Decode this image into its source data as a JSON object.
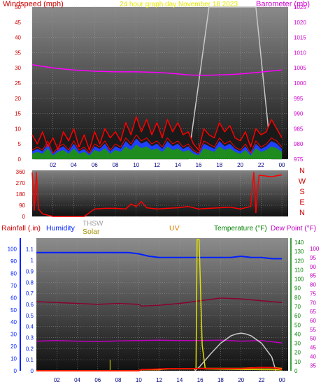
{
  "chart_data": [
    {
      "type": "line",
      "title": "24 hour graph day November 18 2023",
      "ylabel": "Windspeed (mph)",
      "y2label": "Barometer (mb)",
      "ylim": [
        0,
        50
      ],
      "y2lim": [
        975,
        1025
      ],
      "y_ticks": [
        "0",
        "5",
        "10",
        "15",
        "20",
        "25",
        "30",
        "35",
        "40",
        "45",
        "50"
      ],
      "y2_ticks": [
        "975",
        "980",
        "985",
        "990",
        "995",
        "1000",
        "1005",
        "1010",
        "1015",
        "1020",
        "1025"
      ],
      "x_ticks": [
        "02",
        "04",
        "06",
        "08",
        "10",
        "12",
        "14",
        "16",
        "18",
        "20",
        "22",
        "00"
      ],
      "x_hours": [
        2,
        4,
        6,
        8,
        10,
        12,
        14,
        16,
        18,
        20,
        22,
        24
      ],
      "colors": {
        "wind": "#ff0000",
        "barometer": "#ff00ff",
        "overlay": "#c8c8c8",
        "dark": "#1a1a1a",
        "green": "#1e8c1e",
        "blue": "#2040ff"
      },
      "series": [
        {
          "key": "barometer",
          "axis": "y2",
          "x": [
            0,
            1,
            2,
            3,
            4,
            5,
            6,
            7,
            8,
            9,
            10,
            11,
            12,
            13,
            14,
            15,
            16,
            17,
            18,
            19,
            20,
            21,
            22,
            23,
            24
          ],
          "values": [
            1006,
            1005.5,
            1005,
            1004.6,
            1004.3,
            1004.1,
            1003.9,
            1003.8,
            1003.7,
            1003.7,
            1003.7,
            1003.6,
            1003.5,
            1003.3,
            1003,
            1002.7,
            1002.6,
            1002.6,
            1002.7,
            1002.8,
            1003,
            1003.3,
            1003.6,
            1004,
            1004.3
          ]
        },
        {
          "key": "wind",
          "axis": "y",
          "x": [
            0,
            0.5,
            1,
            1.5,
            2,
            2.5,
            3,
            3.5,
            4,
            4.5,
            5,
            5.5,
            6,
            6.5,
            7,
            7.5,
            8,
            8.5,
            9,
            9.5,
            10,
            10.5,
            11,
            11.5,
            12,
            12.5,
            13,
            13.5,
            14,
            14.5,
            15,
            15.5,
            16,
            16.5,
            17,
            17.5,
            18,
            18.5,
            19,
            19.5,
            20,
            20.5,
            21,
            21.5,
            22,
            22.5,
            23,
            23.5,
            24
          ],
          "values": [
            3,
            4,
            3,
            6,
            2,
            4,
            5,
            3,
            6,
            3,
            4,
            2,
            5,
            4,
            6,
            3,
            5,
            4,
            7,
            5,
            8,
            6,
            7,
            5,
            6,
            4,
            7,
            5,
            6,
            4,
            5,
            3,
            2,
            6,
            5,
            4,
            7,
            5,
            6,
            4,
            3,
            5,
            2,
            6,
            4,
            5,
            7,
            6,
            4
          ]
        },
        {
          "key": "gust",
          "axis": "y",
          "x": [
            0,
            0.5,
            1,
            1.5,
            2,
            2.5,
            3,
            3.5,
            4,
            4.5,
            5,
            5.5,
            6,
            6.5,
            7,
            7.5,
            8,
            8.5,
            9,
            9.5,
            10,
            10.5,
            11,
            11.5,
            12,
            12.5,
            13,
            13.5,
            14,
            14.5,
            15,
            15.5,
            16,
            16.5,
            17,
            17.5,
            18,
            18.5,
            19,
            19.5,
            20,
            20.5,
            21,
            21.5,
            22,
            22.5,
            23,
            23.5,
            24
          ],
          "values": [
            8,
            5,
            9,
            4,
            7,
            3,
            9,
            6,
            10,
            4,
            8,
            3,
            9,
            5,
            10,
            7,
            9,
            6,
            12,
            8,
            14,
            9,
            13,
            8,
            12,
            7,
            13,
            9,
            12,
            8,
            9,
            5,
            3,
            10,
            8,
            7,
            12,
            9,
            11,
            7,
            6,
            9,
            4,
            10,
            8,
            9,
            13,
            10,
            7
          ]
        },
        {
          "key": "overlay",
          "axis": "y",
          "x": [
            0,
            0.2,
            15,
            17,
            18.5,
            21.5,
            23,
            24
          ],
          "values": [
            8,
            0,
            0,
            50,
            50,
            50,
            0,
            0
          ]
        }
      ]
    },
    {
      "type": "line",
      "ylabel": "Wind Direction",
      "ylim": [
        0,
        360
      ],
      "y_ticks": [
        "0",
        "90",
        "180",
        "270",
        "360"
      ],
      "dir_labels": [
        "N",
        "W",
        "S",
        "E",
        "N"
      ],
      "series": [
        {
          "key": "direction",
          "x": [
            0,
            0.2,
            0.4,
            0.6,
            1,
            2,
            3,
            4,
            5,
            6,
            7,
            8,
            9,
            9.5,
            10,
            10.5,
            11,
            12,
            13,
            14,
            15,
            16,
            17,
            18,
            19,
            20,
            21,
            21.3,
            21.5,
            21.8,
            22,
            23,
            24
          ],
          "values": [
            355,
            50,
            355,
            60,
            20,
            0,
            0,
            0,
            0,
            60,
            65,
            65,
            60,
            100,
            80,
            120,
            70,
            60,
            65,
            70,
            80,
            60,
            65,
            70,
            75,
            60,
            80,
            355,
            30,
            330,
            330,
            320,
            335
          ]
        }
      ]
    },
    {
      "type": "line",
      "labels": {
        "rain": "Rainfall (.in)",
        "humidity": "Humidity",
        "thsw": "THSW",
        "solar": "Solar",
        "uv": "UV",
        "temperature": "Temperature (°F)",
        "dew_point": "Dew Point (°F)"
      },
      "ylim": [
        0,
        1.2
      ],
      "y_ticks": [
        "0",
        "0.1",
        "0.2",
        "0.3",
        "0.4",
        "0.5",
        "0.6",
        "0.7",
        "0.8",
        "0.9",
        "1",
        "1.1"
      ],
      "y_left2_ticks": [
        "0",
        "10",
        "20",
        "30",
        "40",
        "50",
        "60",
        "70",
        "80",
        "90",
        "100"
      ],
      "y2_ticks": [
        "0",
        "10",
        "20",
        "30",
        "40",
        "50",
        "60",
        "70",
        "80",
        "90",
        "100",
        "110",
        "120",
        "130",
        "140"
      ],
      "y3_ticks": [
        "35",
        "40",
        "45",
        "50",
        "55",
        "60",
        "65",
        "70",
        "75",
        "80",
        "85",
        "90",
        "95",
        "100"
      ],
      "colors": {
        "rain": "#ff0000",
        "humidity": "#0020ff",
        "temperature": "#8b0030",
        "dew_point": "#c000c0",
        "solar": "#c8c8c8",
        "uv": "#e0e000",
        "thsw": "#ff8000"
      },
      "series": [
        {
          "key": "humidity",
          "axis": "y_left2",
          "x": [
            0,
            2,
            4,
            6,
            8,
            9,
            10,
            11,
            12,
            13,
            14,
            15,
            16,
            17,
            18,
            19,
            20,
            21,
            22,
            23,
            24
          ],
          "values": [
            97,
            97,
            97,
            97,
            97,
            97,
            96,
            94,
            93,
            93,
            93,
            93,
            93,
            93,
            93,
            93,
            94,
            93,
            93,
            92,
            92
          ]
        },
        {
          "key": "temperature",
          "axis": "y3",
          "x": [
            0,
            2,
            4,
            6,
            8,
            10,
            10.3,
            12,
            14,
            16,
            18,
            20,
            22,
            24
          ],
          "values": [
            70.5,
            70,
            69.5,
            69,
            69.5,
            69,
            68,
            68.5,
            69.5,
            71,
            72.5,
            72,
            71,
            70
          ]
        },
        {
          "key": "dew_point",
          "axis": "y3",
          "x": [
            0,
            2,
            4,
            6,
            8,
            10,
            12,
            14,
            16,
            18,
            20,
            22,
            24
          ],
          "values": [
            48.5,
            48.8,
            48.5,
            48.3,
            48.6,
            48.8,
            49,
            48.8,
            48.8,
            49,
            48.5,
            48.8,
            47.5
          ]
        },
        {
          "key": "solar",
          "axis": "y2",
          "x": [
            15.5,
            16,
            17,
            18,
            19,
            19.5,
            20,
            20.5,
            21,
            22,
            23,
            23.4
          ],
          "values": [
            0,
            5,
            18,
            30,
            38,
            40,
            41,
            40,
            38,
            30,
            15,
            0
          ]
        },
        {
          "key": "uv",
          "axis": "y2",
          "x": [
            15.4,
            15.6,
            15.7,
            15.9,
            16.2,
            16.5,
            24
          ],
          "values": [
            1,
            3,
            143,
            143,
            28,
            2,
            1
          ]
        },
        {
          "key": "thsw",
          "axis": "y",
          "x": [
            0,
            10,
            10.3,
            11,
            12,
            12.3,
            13,
            15,
            16,
            17,
            18,
            19,
            20,
            21,
            22,
            23,
            24
          ],
          "values": [
            0,
            0,
            0.01,
            0.01,
            0.01,
            0.015,
            0.018,
            0.018,
            0.02,
            0.02,
            0.02,
            0.02,
            0.02,
            0.025,
            0.028,
            0.028,
            0.02
          ]
        },
        {
          "key": "rain",
          "axis": "y",
          "x": [
            0,
            10,
            10.3,
            13,
            20,
            21,
            22,
            23,
            24
          ],
          "values": [
            0,
            0,
            0.01,
            0.02,
            0.02,
            0.025,
            0.03,
            0.03,
            0.01
          ]
        }
      ]
    }
  ]
}
